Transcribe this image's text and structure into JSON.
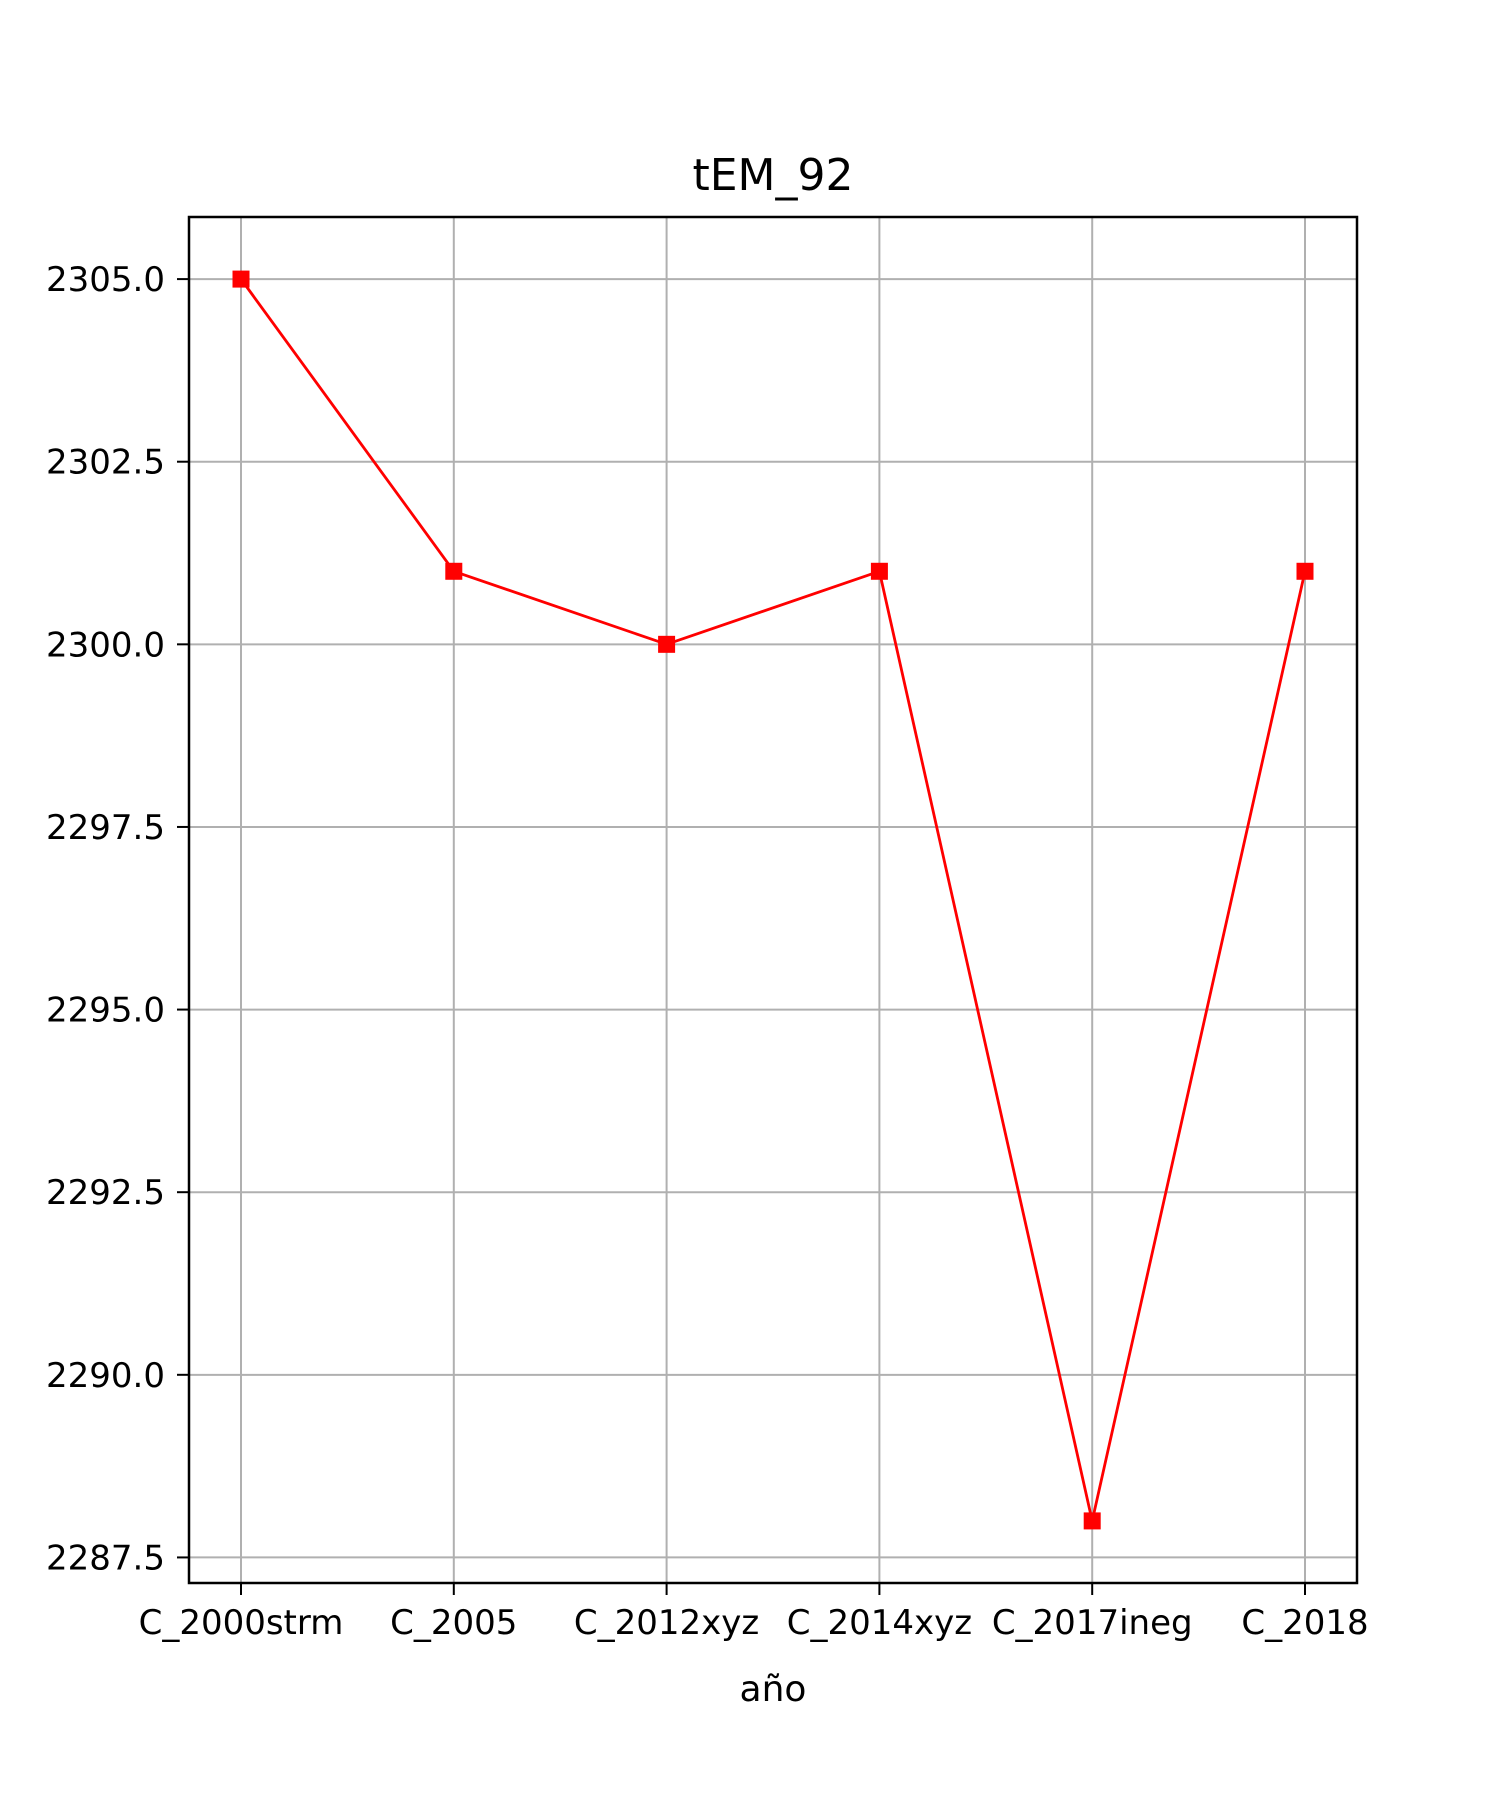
{
  "chart_data": {
    "type": "line",
    "title": "tEM_92",
    "xlabel": "año",
    "ylabel": "",
    "categories": [
      "C_2000strm",
      "C_2005",
      "C_2012xyz",
      "C_2014xyz",
      "C_2017ineg",
      "C_2018"
    ],
    "series": [
      {
        "values": [
          2305.0,
          2301.0,
          2300.0,
          2301.0,
          2288.0,
          2301.0
        ],
        "color": "#ff0000",
        "marker": "square"
      }
    ],
    "ylim": [
      2287.15,
      2305.85
    ],
    "yticks": [
      "2287.5",
      "2290.0",
      "2292.5",
      "2295.0",
      "2297.5",
      "2300.0",
      "2302.5",
      "2305.0"
    ],
    "grid": true,
    "colors": {
      "grid": "#b0b0b0",
      "line": "#ff0000",
      "axes": "#000000"
    }
  }
}
